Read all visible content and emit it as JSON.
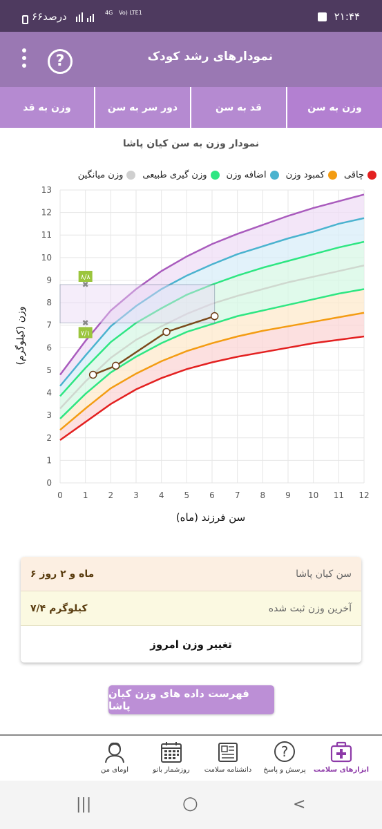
{
  "status_bar": {
    "time": "۲۱:۴۴",
    "battery_text": "۶۶درصد",
    "network": "4G",
    "network2": "Vo) LTE1"
  },
  "header": {
    "title": "نمودارهای رشد کودک",
    "menu_icon": "more-vertical-icon",
    "help_icon": "help-circle-icon"
  },
  "tabs": [
    {
      "label": "وزن به سن",
      "active": true
    },
    {
      "label": "قد به سن",
      "active": false
    },
    {
      "label": "دور سر به سن",
      "active": false
    },
    {
      "label": "وزن به قد",
      "active": false
    }
  ],
  "chart_title": "نمودار وزن به سن کیان پاشا",
  "legend": [
    {
      "label": "چاقی",
      "color": "#e32020"
    },
    {
      "label": "کمبود وزن",
      "color": "#f39c12"
    },
    {
      "label": "اضافه وزن",
      "color": "#4ab3cf"
    },
    {
      "label": "وزن گیری طبیعی",
      "color": "#2ee682"
    },
    {
      "label": "وزن میانگین",
      "color": "#cfcfcf"
    }
  ],
  "chart_data": {
    "type": "line",
    "xlabel": "سن فرزند (ماه)",
    "ylabel": "وزن (کیلوگرم)",
    "xlim": [
      0,
      12
    ],
    "ylim": [
      0,
      13
    ],
    "x_ticks": [
      "0",
      "1",
      "2",
      "3",
      "4",
      "5",
      "6",
      "7",
      "8",
      "9",
      "10",
      "11",
      "12"
    ],
    "y_ticks": [
      "0",
      "1",
      "2",
      "3",
      "4",
      "5",
      "6",
      "7",
      "8",
      "9",
      "10",
      "11",
      "12",
      "13"
    ],
    "reference_x": [
      0,
      1,
      2,
      3,
      4,
      5,
      6,
      7,
      8,
      9,
      10,
      11,
      12
    ],
    "reference_curves": [
      {
        "key": "red",
        "color": "#e32020",
        "values": [
          1.9,
          2.7,
          3.5,
          4.15,
          4.65,
          5.05,
          5.35,
          5.6,
          5.8,
          6.0,
          6.2,
          6.35,
          6.5
        ]
      },
      {
        "key": "orange",
        "color": "#f39c12",
        "values": [
          2.35,
          3.3,
          4.2,
          4.85,
          5.4,
          5.85,
          6.2,
          6.5,
          6.75,
          6.95,
          7.15,
          7.35,
          7.55
        ]
      },
      {
        "key": "green",
        "color": "#2ee682",
        "values": [
          2.85,
          3.95,
          4.9,
          5.6,
          6.2,
          6.7,
          7.05,
          7.4,
          7.65,
          7.9,
          8.15,
          8.4,
          8.6
        ]
      },
      {
        "key": "mean",
        "color": "#cfd8cf",
        "values": [
          3.3,
          4.5,
          5.55,
          6.35,
          6.95,
          7.5,
          7.95,
          8.3,
          8.6,
          8.9,
          9.15,
          9.4,
          9.65
        ]
      },
      {
        "key": "green_upper",
        "color": "#2ee682",
        "values": [
          3.85,
          5.1,
          6.25,
          7.1,
          7.75,
          8.35,
          8.8,
          9.2,
          9.55,
          9.85,
          10.15,
          10.45,
          10.7
        ]
      },
      {
        "key": "blue",
        "color": "#4ab3cf",
        "values": [
          4.3,
          5.65,
          6.95,
          7.85,
          8.6,
          9.2,
          9.7,
          10.15,
          10.5,
          10.85,
          11.15,
          11.5,
          11.75
        ]
      },
      {
        "key": "purple",
        "color": "#a95bbd",
        "values": [
          4.8,
          6.3,
          7.65,
          8.6,
          9.4,
          10.05,
          10.6,
          11.05,
          11.45,
          11.85,
          12.2,
          12.5,
          12.8
        ]
      }
    ],
    "series": [
      {
        "x": [
          1.3,
          2.2,
          4.2,
          6.1
        ],
        "values": [
          4.8,
          5.2,
          6.7,
          7.4
        ],
        "color": "#7b4a1c"
      }
    ],
    "range_marker": {
      "x": 1,
      "low": 7.1,
      "high": 8.8,
      "x_end": 6.1,
      "low_label": "۷/۱",
      "high_label": "۸/۸"
    }
  },
  "info_card": {
    "age_label": "سن کیان پاشا",
    "age_value": "۶ ماه و ۲ روز",
    "weight_label": "آخرین وزن ثبت شده",
    "weight_value": "۷/۴ کیلوگرم",
    "change_button": "تغییر وزن امروز"
  },
  "list_button": "فهرست داده های وزن کیان پاشا",
  "bottom_nav": [
    {
      "label": "ابزارهای سلامت",
      "icon": "medical-kit-icon",
      "active": true
    },
    {
      "label": "پرسش و پاسخ",
      "icon": "question-circle-icon",
      "active": false
    },
    {
      "label": "دانشنامه سلامت",
      "icon": "newspaper-icon",
      "active": false
    },
    {
      "label": "روزشمار بانو",
      "icon": "calendar-icon",
      "active": false
    },
    {
      "label": "اومای من",
      "icon": "user-avatar-icon",
      "active": false
    }
  ],
  "system_nav": {
    "recents": "|||",
    "home": "○",
    "back": "<"
  }
}
